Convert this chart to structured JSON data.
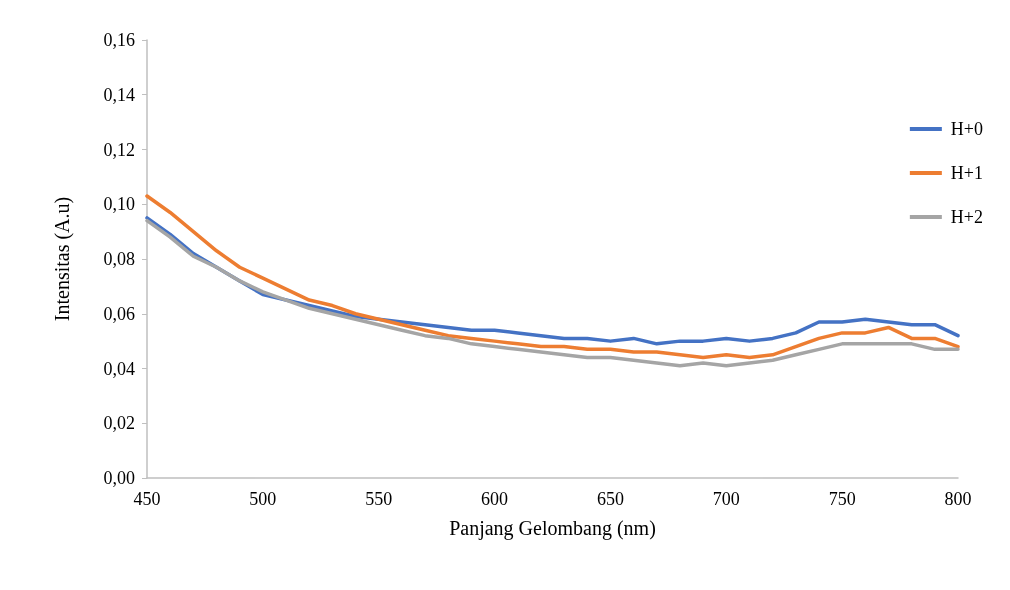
{
  "chart_data": {
    "type": "line",
    "xlabel": "Panjang Gelombang (nm)",
    "ylabel": "Intensitas (A.u)",
    "x": [
      450,
      460,
      470,
      480,
      490,
      500,
      510,
      520,
      530,
      540,
      550,
      560,
      570,
      580,
      590,
      600,
      610,
      620,
      630,
      640,
      650,
      660,
      670,
      680,
      690,
      700,
      710,
      720,
      730,
      740,
      750,
      760,
      770,
      780,
      790,
      800
    ],
    "series": [
      {
        "name": "H+0",
        "color": "#4472c4",
        "values": [
          0.095,
          0.089,
          0.082,
          0.077,
          0.072,
          0.067,
          0.065,
          0.063,
          0.061,
          0.059,
          0.058,
          0.057,
          0.056,
          0.055,
          0.054,
          0.054,
          0.053,
          0.052,
          0.051,
          0.051,
          0.05,
          0.051,
          0.049,
          0.05,
          0.05,
          0.051,
          0.05,
          0.051,
          0.053,
          0.057,
          0.057,
          0.058,
          0.057,
          0.056,
          0.056,
          0.052
        ]
      },
      {
        "name": "H+1",
        "color": "#ed7d31",
        "values": [
          0.103,
          0.097,
          0.09,
          0.083,
          0.077,
          0.073,
          0.069,
          0.065,
          0.063,
          0.06,
          0.058,
          0.056,
          0.054,
          0.052,
          0.051,
          0.05,
          0.049,
          0.048,
          0.048,
          0.047,
          0.047,
          0.046,
          0.046,
          0.045,
          0.044,
          0.045,
          0.044,
          0.045,
          0.048,
          0.051,
          0.053,
          0.053,
          0.055,
          0.051,
          0.051,
          0.048
        ]
      },
      {
        "name": "H+2",
        "color": "#a5a5a5",
        "values": [
          0.094,
          0.088,
          0.081,
          0.077,
          0.072,
          0.068,
          0.065,
          0.062,
          0.06,
          0.058,
          0.056,
          0.054,
          0.052,
          0.051,
          0.049,
          0.048,
          0.047,
          0.046,
          0.045,
          0.044,
          0.044,
          0.043,
          0.042,
          0.041,
          0.042,
          0.041,
          0.042,
          0.043,
          0.045,
          0.047,
          0.049,
          0.049,
          0.049,
          0.049,
          0.047,
          0.047
        ]
      }
    ],
    "xlim": [
      450,
      800
    ],
    "xticks": [
      450,
      500,
      550,
      600,
      650,
      700,
      750,
      800
    ],
    "ylim": [
      0,
      0.16
    ],
    "yticks": [
      {
        "value": 0,
        "label": "0,00"
      },
      {
        "value": 0.02,
        "label": "0,02"
      },
      {
        "value": 0.04,
        "label": "0,04"
      },
      {
        "value": 0.06,
        "label": "0,06"
      },
      {
        "value": 0.08,
        "label": "0,08"
      },
      {
        "value": 0.1,
        "label": "0,10"
      },
      {
        "value": 0.12,
        "label": "0,12"
      },
      {
        "value": 0.14,
        "label": "0,14"
      },
      {
        "value": 0.16,
        "label": "0,16"
      }
    ],
    "grid": false,
    "legend": "right",
    "marker": "none",
    "line_style": "solid"
  }
}
